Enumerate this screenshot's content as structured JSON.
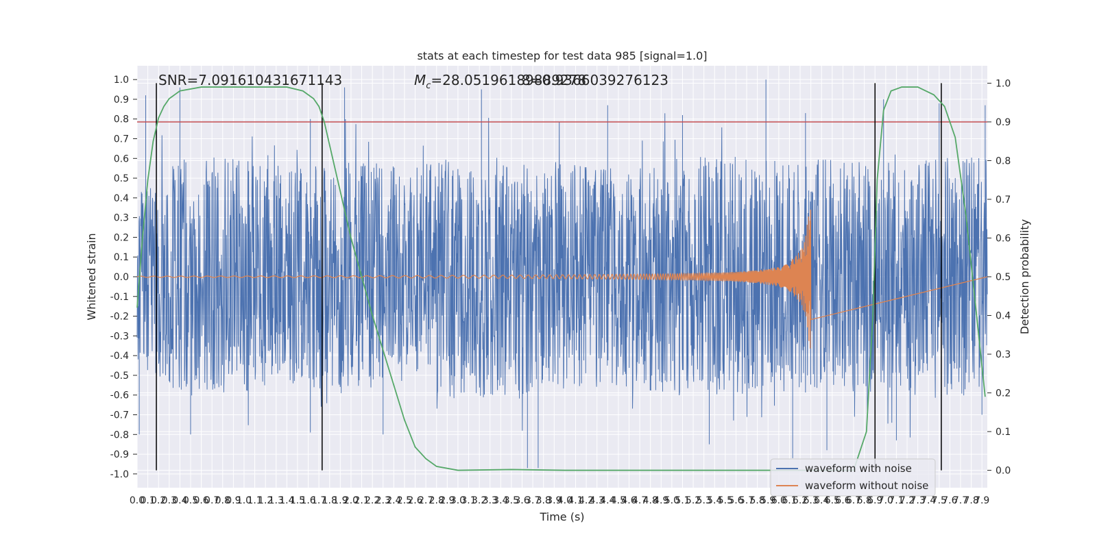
{
  "chart_data": {
    "type": "line",
    "title": "stats at each timestep for test data 985 [signal=1.0]",
    "xlabel": "Time (s)",
    "ylabel": "Whitened strain",
    "y2label": "Detection probability",
    "xlim": [
      0.0,
      7.95
    ],
    "ylim": [
      -1.07,
      1.07
    ],
    "y2lim": [
      -0.045,
      1.045
    ],
    "x_ticks": [
      0.0,
      0.1,
      0.2,
      0.3,
      0.4,
      0.5,
      0.6,
      0.7,
      0.8,
      0.9,
      1.0,
      1.1,
      1.2,
      1.3,
      1.4,
      1.5,
      1.6,
      1.7,
      1.8,
      1.9,
      2.0,
      2.1,
      2.2,
      2.3,
      2.4,
      2.5,
      2.6,
      2.7,
      2.8,
      2.9,
      3.0,
      3.1,
      3.2,
      3.3,
      3.4,
      3.5,
      3.6,
      3.7,
      3.8,
      3.9,
      4.0,
      4.1,
      4.2,
      4.3,
      4.4,
      4.5,
      4.6,
      4.7,
      4.8,
      4.9,
      5.0,
      5.1,
      5.2,
      5.3,
      5.4,
      5.5,
      5.6,
      5.7,
      5.8,
      5.9,
      6.0,
      6.1,
      6.2,
      6.3,
      6.4,
      6.5,
      6.6,
      6.7,
      6.8,
      6.9,
      7.0,
      7.1,
      7.2,
      7.3,
      7.4,
      7.5,
      7.6,
      7.7,
      7.8,
      7.9
    ],
    "y_ticks": [
      1.0,
      0.9,
      0.8,
      0.7,
      0.6,
      0.5,
      0.4,
      0.3,
      0.2,
      0.1,
      0.0,
      -0.1,
      -0.2,
      -0.3,
      -0.4,
      -0.5,
      -0.6,
      -0.7,
      -0.8,
      -0.9,
      -1.0
    ],
    "y2_ticks": [
      1.0,
      0.9,
      0.8,
      0.7,
      0.6,
      0.5,
      0.4,
      0.3,
      0.2,
      0.1,
      0.0
    ],
    "grid": true,
    "legend_position": "bottom-right",
    "annotations": {
      "snr": "SNR=7.091610431671143",
      "mc": "M",
      "mc_sub": "c",
      "mc_value": "=28.05196189889278",
      "overlap": "8=0.9366039276123"
    },
    "threshold_line": {
      "y2": 0.9,
      "color": "#c44e52"
    },
    "vertical_lines_x": [
      0.18,
      1.73,
      6.9,
      7.52
    ],
    "series": [
      {
        "name": "waveform with noise",
        "color": "#4c72b0",
        "style": "dense noise envelope",
        "upper_env": {
          "x": [
            0.0,
            0.5,
            1.0,
            1.5,
            2.0,
            2.5,
            3.0,
            3.5,
            4.0,
            4.5,
            5.0,
            5.5,
            6.0,
            6.5,
            7.0,
            7.5,
            7.95
          ],
          "y": [
            0.45,
            0.62,
            0.6,
            0.55,
            0.6,
            0.55,
            0.62,
            0.6,
            0.58,
            0.55,
            0.6,
            0.62,
            0.58,
            0.6,
            0.58,
            0.62,
            0.6
          ]
        },
        "peaks": [
          [
            0.08,
            0.92
          ],
          [
            0.4,
            0.96
          ],
          [
            1.62,
            0.8
          ],
          [
            1.94,
            0.96
          ],
          [
            3.22,
            0.95
          ],
          [
            4.4,
            0.87
          ],
          [
            5.1,
            0.82
          ],
          [
            5.88,
            1.0
          ],
          [
            6.25,
            0.83
          ],
          [
            6.98,
            0.9
          ],
          [
            7.5,
            0.88
          ],
          [
            7.93,
            0.87
          ]
        ],
        "troughs": [
          [
            0.02,
            -0.8
          ],
          [
            0.5,
            -0.8
          ],
          [
            1.62,
            -0.79
          ],
          [
            2.3,
            -0.8
          ],
          [
            3.65,
            -0.97
          ],
          [
            3.75,
            -0.97
          ],
          [
            5.35,
            -0.85
          ],
          [
            6.13,
            -0.92
          ],
          [
            6.45,
            -0.88
          ],
          [
            7.1,
            -0.83
          ],
          [
            7.9,
            -0.7
          ]
        ]
      },
      {
        "name": "waveform without noise",
        "color": "#dd8452",
        "style": "chirp",
        "points": {
          "x": [
            0.0,
            1.0,
            2.0,
            3.0,
            4.0,
            5.0,
            5.5,
            5.8,
            6.0,
            6.1,
            6.2,
            6.25,
            6.28,
            6.3
          ],
          "amp": [
            0.003,
            0.004,
            0.005,
            0.007,
            0.01,
            0.015,
            0.022,
            0.032,
            0.05,
            0.075,
            0.13,
            0.2,
            0.33,
            0.38
          ]
        }
      },
      {
        "name": "detection probability",
        "color": "#55a868",
        "axis": "y2",
        "points": {
          "x": [
            0.0,
            0.05,
            0.1,
            0.15,
            0.2,
            0.25,
            0.3,
            0.4,
            0.6,
            1.0,
            1.4,
            1.55,
            1.65,
            1.7,
            1.75,
            1.85,
            2.0,
            2.2,
            2.4,
            2.5,
            2.6,
            2.7,
            2.8,
            3.0,
            3.5,
            4.0,
            5.0,
            6.0,
            6.7,
            6.82,
            6.88,
            6.92,
            6.98,
            7.05,
            7.15,
            7.3,
            7.45,
            7.55,
            7.65,
            7.75,
            7.85,
            7.93
          ],
          "y": [
            0.42,
            0.6,
            0.75,
            0.85,
            0.91,
            0.94,
            0.96,
            0.98,
            0.99,
            0.99,
            0.99,
            0.98,
            0.96,
            0.94,
            0.9,
            0.78,
            0.6,
            0.4,
            0.22,
            0.13,
            0.06,
            0.03,
            0.01,
            0.0,
            0.002,
            0.0,
            0.0,
            0.0,
            0.0,
            0.1,
            0.4,
            0.75,
            0.93,
            0.98,
            0.99,
            0.99,
            0.97,
            0.94,
            0.86,
            0.66,
            0.4,
            0.19
          ]
        }
      }
    ]
  }
}
